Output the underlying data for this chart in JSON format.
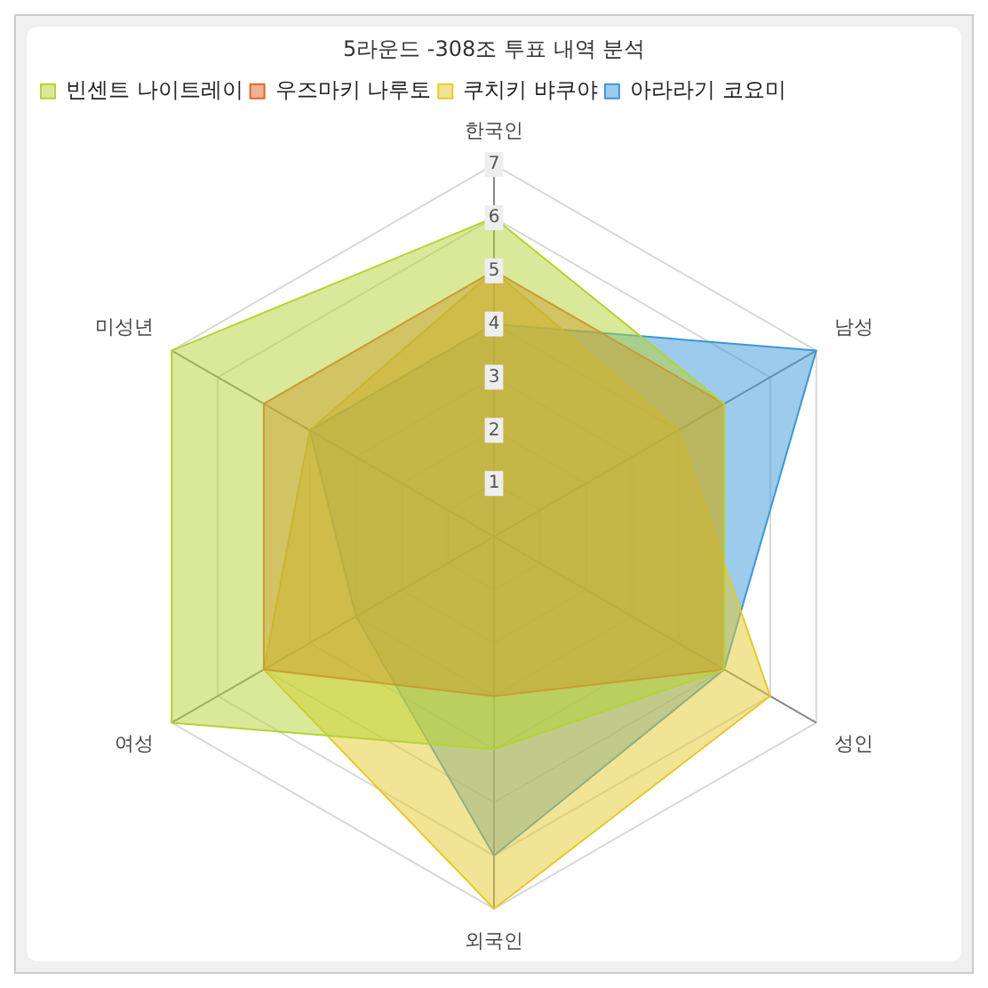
{
  "chart_data": {
    "type": "radar",
    "title": "5라운드 -308조 투표 내역 분석",
    "categories": [
      "한국인",
      "남성",
      "성인",
      "외국인",
      "여성",
      "미성년"
    ],
    "series": [
      {
        "name": "빈센트 나이트레이",
        "color": "#b5d334",
        "values": [
          6,
          5,
          5,
          4,
          7,
          7
        ]
      },
      {
        "name": "우즈마키 나루토",
        "color": "#e0662a",
        "values": [
          5,
          5,
          5,
          3,
          5,
          5
        ]
      },
      {
        "name": "쿠치키 뱌쿠야",
        "color": "#e6c92c",
        "values": [
          5,
          4,
          6,
          7,
          5,
          4
        ]
      },
      {
        "name": "아라라기 코요미",
        "color": "#3a97d8",
        "values": [
          4,
          7,
          5,
          6,
          3,
          4
        ]
      }
    ],
    "ylim": [
      0,
      7
    ],
    "yticks": [
      1,
      2,
      3,
      4,
      5,
      6,
      7
    ],
    "grid": true,
    "legend": "top left",
    "line_style": "solid",
    "marker": "none"
  }
}
